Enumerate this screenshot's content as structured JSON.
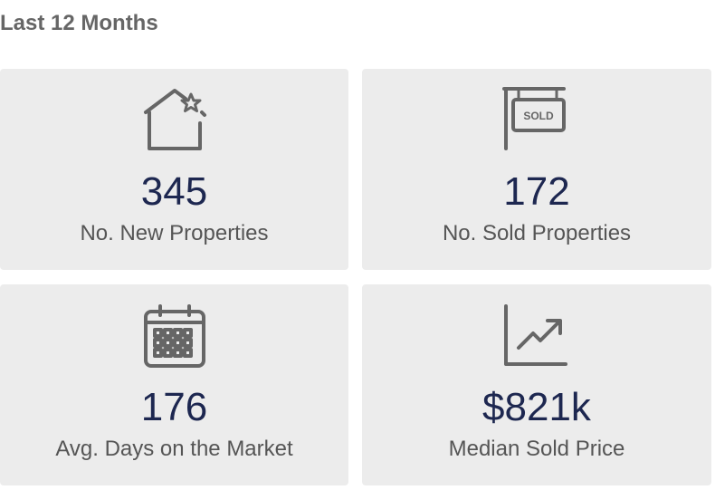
{
  "header": {
    "title": "Last 12 Months"
  },
  "cards": [
    {
      "value": "345",
      "label": "No. New Properties"
    },
    {
      "value": "172",
      "label": "No. Sold Properties",
      "icon_text": "SOLD"
    },
    {
      "value": "176",
      "label": "Avg. Days on the Market"
    },
    {
      "value": "$821k",
      "label": "Median Sold Price"
    }
  ]
}
